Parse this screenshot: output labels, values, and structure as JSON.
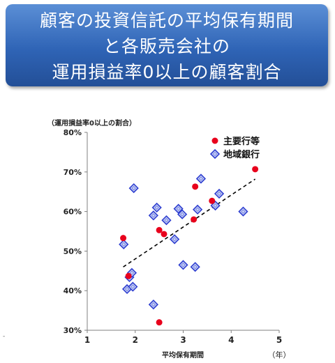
{
  "banner": {
    "line1": "顧客の投資信託の平均保有期間",
    "line2": "と各販売会社の",
    "line3": "運用損益率0以上の顧客割合"
  },
  "side_mark": "‐",
  "chart_data": {
    "type": "scatter",
    "ylabel": "（運用損益率0以上の割合）",
    "xlabel": "平均保有期間",
    "xunit": "（年）",
    "xlim": [
      1,
      5
    ],
    "ylim": [
      30,
      80
    ],
    "xticks": [
      "1",
      "2",
      "3",
      "4",
      "5"
    ],
    "yticks": [
      "30%",
      "40%",
      "50%",
      "60%",
      "70%",
      "80%"
    ],
    "legend_position": "top-right",
    "grid": false,
    "series": [
      {
        "name": "主要行等",
        "marker": "circle",
        "color": "#e8001c",
        "points": [
          [
            1.75,
            53.3
          ],
          [
            1.86,
            43.7
          ],
          [
            2.5,
            55.3
          ],
          [
            2.6,
            54.3
          ],
          [
            2.5,
            32.0
          ],
          [
            3.22,
            58.0
          ],
          [
            3.25,
            66.3
          ],
          [
            3.6,
            62.7
          ],
          [
            4.5,
            70.7
          ]
        ]
      },
      {
        "name": "地域銀行",
        "marker": "diamond",
        "color": "#2f3fd0",
        "points": [
          [
            1.76,
            51.7
          ],
          [
            1.97,
            65.9
          ],
          [
            1.83,
            40.4
          ],
          [
            1.88,
            43.4
          ],
          [
            1.93,
            44.5
          ],
          [
            1.95,
            41.0
          ],
          [
            2.38,
            59.0
          ],
          [
            2.45,
            61.0
          ],
          [
            2.65,
            57.8
          ],
          [
            2.38,
            36.5
          ],
          [
            2.82,
            53.0
          ],
          [
            2.9,
            60.7
          ],
          [
            2.98,
            59.3
          ],
          [
            3.0,
            46.5
          ],
          [
            3.25,
            46.0
          ],
          [
            3.3,
            60.5
          ],
          [
            3.37,
            68.3
          ],
          [
            3.67,
            61.5
          ],
          [
            3.75,
            64.5
          ],
          [
            4.25,
            60.0
          ]
        ]
      }
    ],
    "trendline": {
      "style": "dashed",
      "color": "#000000",
      "from": [
        1.75,
        46.0
      ],
      "to": [
        4.5,
        68.2
      ]
    }
  }
}
